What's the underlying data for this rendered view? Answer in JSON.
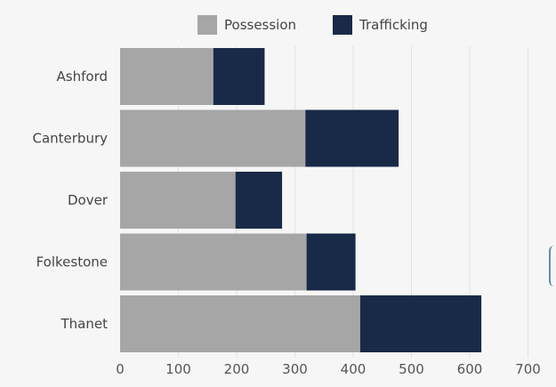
{
  "chart_data": {
    "type": "bar",
    "orientation": "horizontal",
    "stacked": true,
    "categories": [
      "Ashford",
      "Canterbury",
      "Dover",
      "Folkestone",
      "Thanet"
    ],
    "series": [
      {
        "name": "Possession",
        "color": "#a6a6a6",
        "values": [
          160,
          318,
          198,
          320,
          412
        ]
      },
      {
        "name": "Trafficking",
        "color": "#182a47",
        "values": [
          88,
          160,
          80,
          84,
          208
        ]
      }
    ],
    "xticks": [
      0,
      100,
      200,
      300,
      400,
      500,
      600,
      700
    ],
    "xlim": [
      0,
      700
    ],
    "grid": true,
    "legend_position": "top",
    "title": "",
    "xlabel": "",
    "ylabel": ""
  }
}
